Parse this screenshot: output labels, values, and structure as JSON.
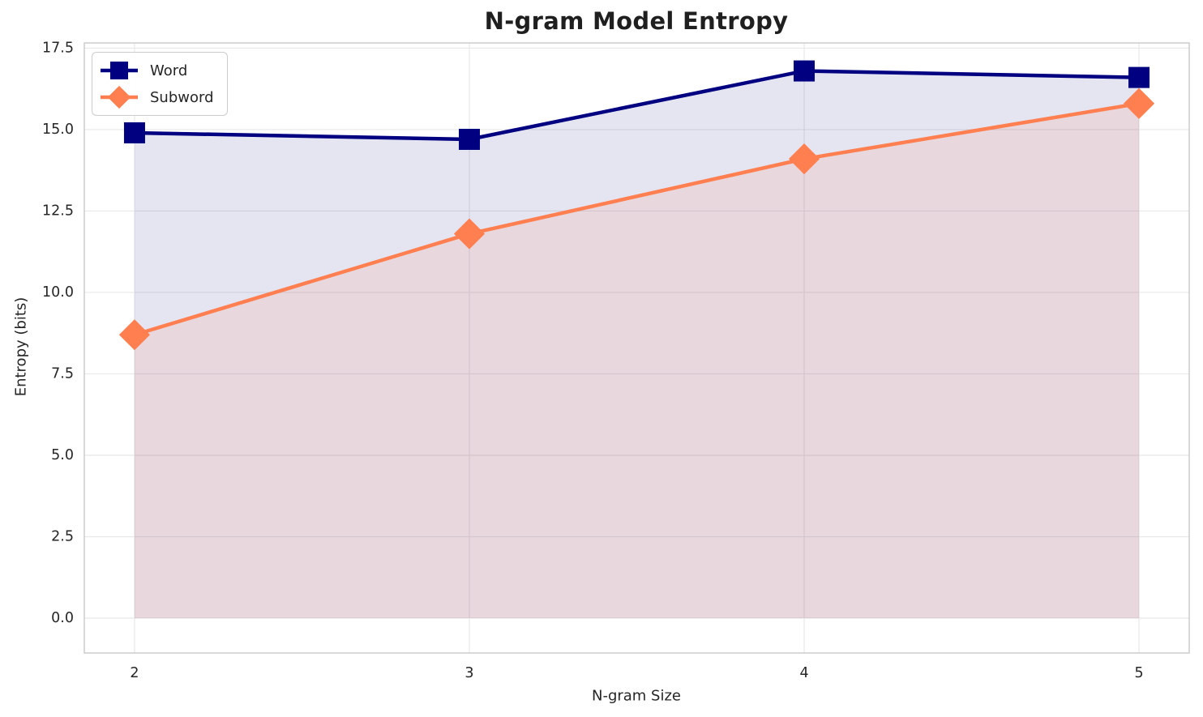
{
  "chart_data": {
    "type": "line",
    "title": "N-gram Model Entropy",
    "xlabel": "N-gram Size",
    "ylabel": "Entropy (bits)",
    "x": [
      2,
      3,
      4,
      5
    ],
    "xticks": [
      2,
      3,
      4,
      5
    ],
    "yticks": [
      0.0,
      2.5,
      5.0,
      7.5,
      10.0,
      12.5,
      15.0,
      17.5
    ],
    "xlim": [
      1.85,
      5.15
    ],
    "ylim": [
      -1.07,
      17.66
    ],
    "grid": true,
    "legend_position": "upper-left",
    "fill_baseline": 0,
    "series": [
      {
        "name": "Word",
        "color": "#000080",
        "marker": "square",
        "values": [
          14.9,
          14.7,
          16.8,
          16.6
        ],
        "fill_alpha": 0.1
      },
      {
        "name": "Subword",
        "color": "#FF7F50",
        "marker": "diamond",
        "values": [
          8.7,
          11.8,
          14.1,
          15.8
        ],
        "fill_alpha": 0.12
      }
    ]
  },
  "style": {
    "grid_color": "#e8e8e8",
    "spine_color": "#c9c9c9",
    "tick_color": "#262626",
    "title_color": "#1f1f1f",
    "background": "#ffffff"
  }
}
